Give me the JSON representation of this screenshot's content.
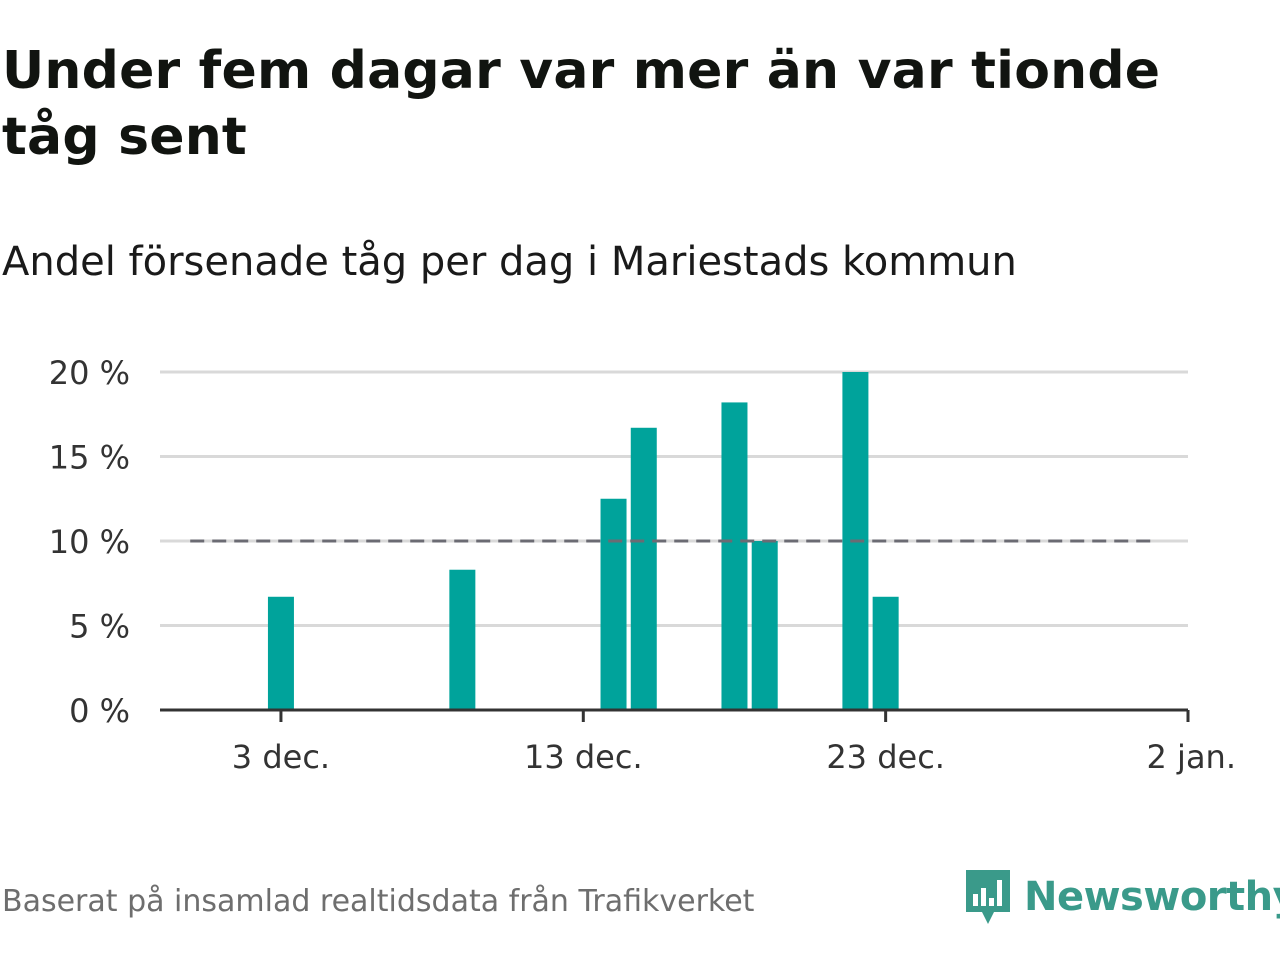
{
  "title": "Under fem dagar var mer än var tionde tåg sent",
  "subtitle": "Andel försenade tåg per dag i Mariestads kommun",
  "source": "Baserat på insamlad realtidsdata från Trafikverket",
  "brand": {
    "name": "Newsworthy",
    "icon": "newsworthy-logo-icon",
    "color": "#3a9a8a"
  },
  "chart_data": {
    "type": "bar",
    "x_type": "date",
    "x": [
      "2023-12-03",
      "2023-12-09",
      "2023-12-14",
      "2023-12-15",
      "2023-12-18",
      "2023-12-19",
      "2023-12-22",
      "2023-12-23"
    ],
    "values": [
      6.7,
      8.3,
      12.5,
      16.7,
      18.2,
      10.0,
      20.0,
      6.7
    ],
    "xlim": [
      "2023-11-29",
      "2024-01-02"
    ],
    "ylim": [
      0,
      20
    ],
    "y_ticks": [
      0,
      5,
      10,
      15,
      20
    ],
    "y_tick_labels": [
      "0 %",
      "5 %",
      "10 %",
      "15 %",
      "20 %"
    ],
    "x_ticks": [
      "2023-12-03",
      "2023-12-13",
      "2023-12-23",
      "2024-01-02"
    ],
    "x_tick_labels": [
      "3 dec.",
      "13 dec.",
      "23 dec.",
      "2 jan."
    ],
    "reference_line": {
      "value": 10,
      "style": "dashed",
      "from": "2023-11-30",
      "to": "2024-01-01",
      "color": "#6b6b73"
    },
    "bar_color": "#00a39b",
    "grid": true,
    "xlabel": "",
    "ylabel": ""
  }
}
